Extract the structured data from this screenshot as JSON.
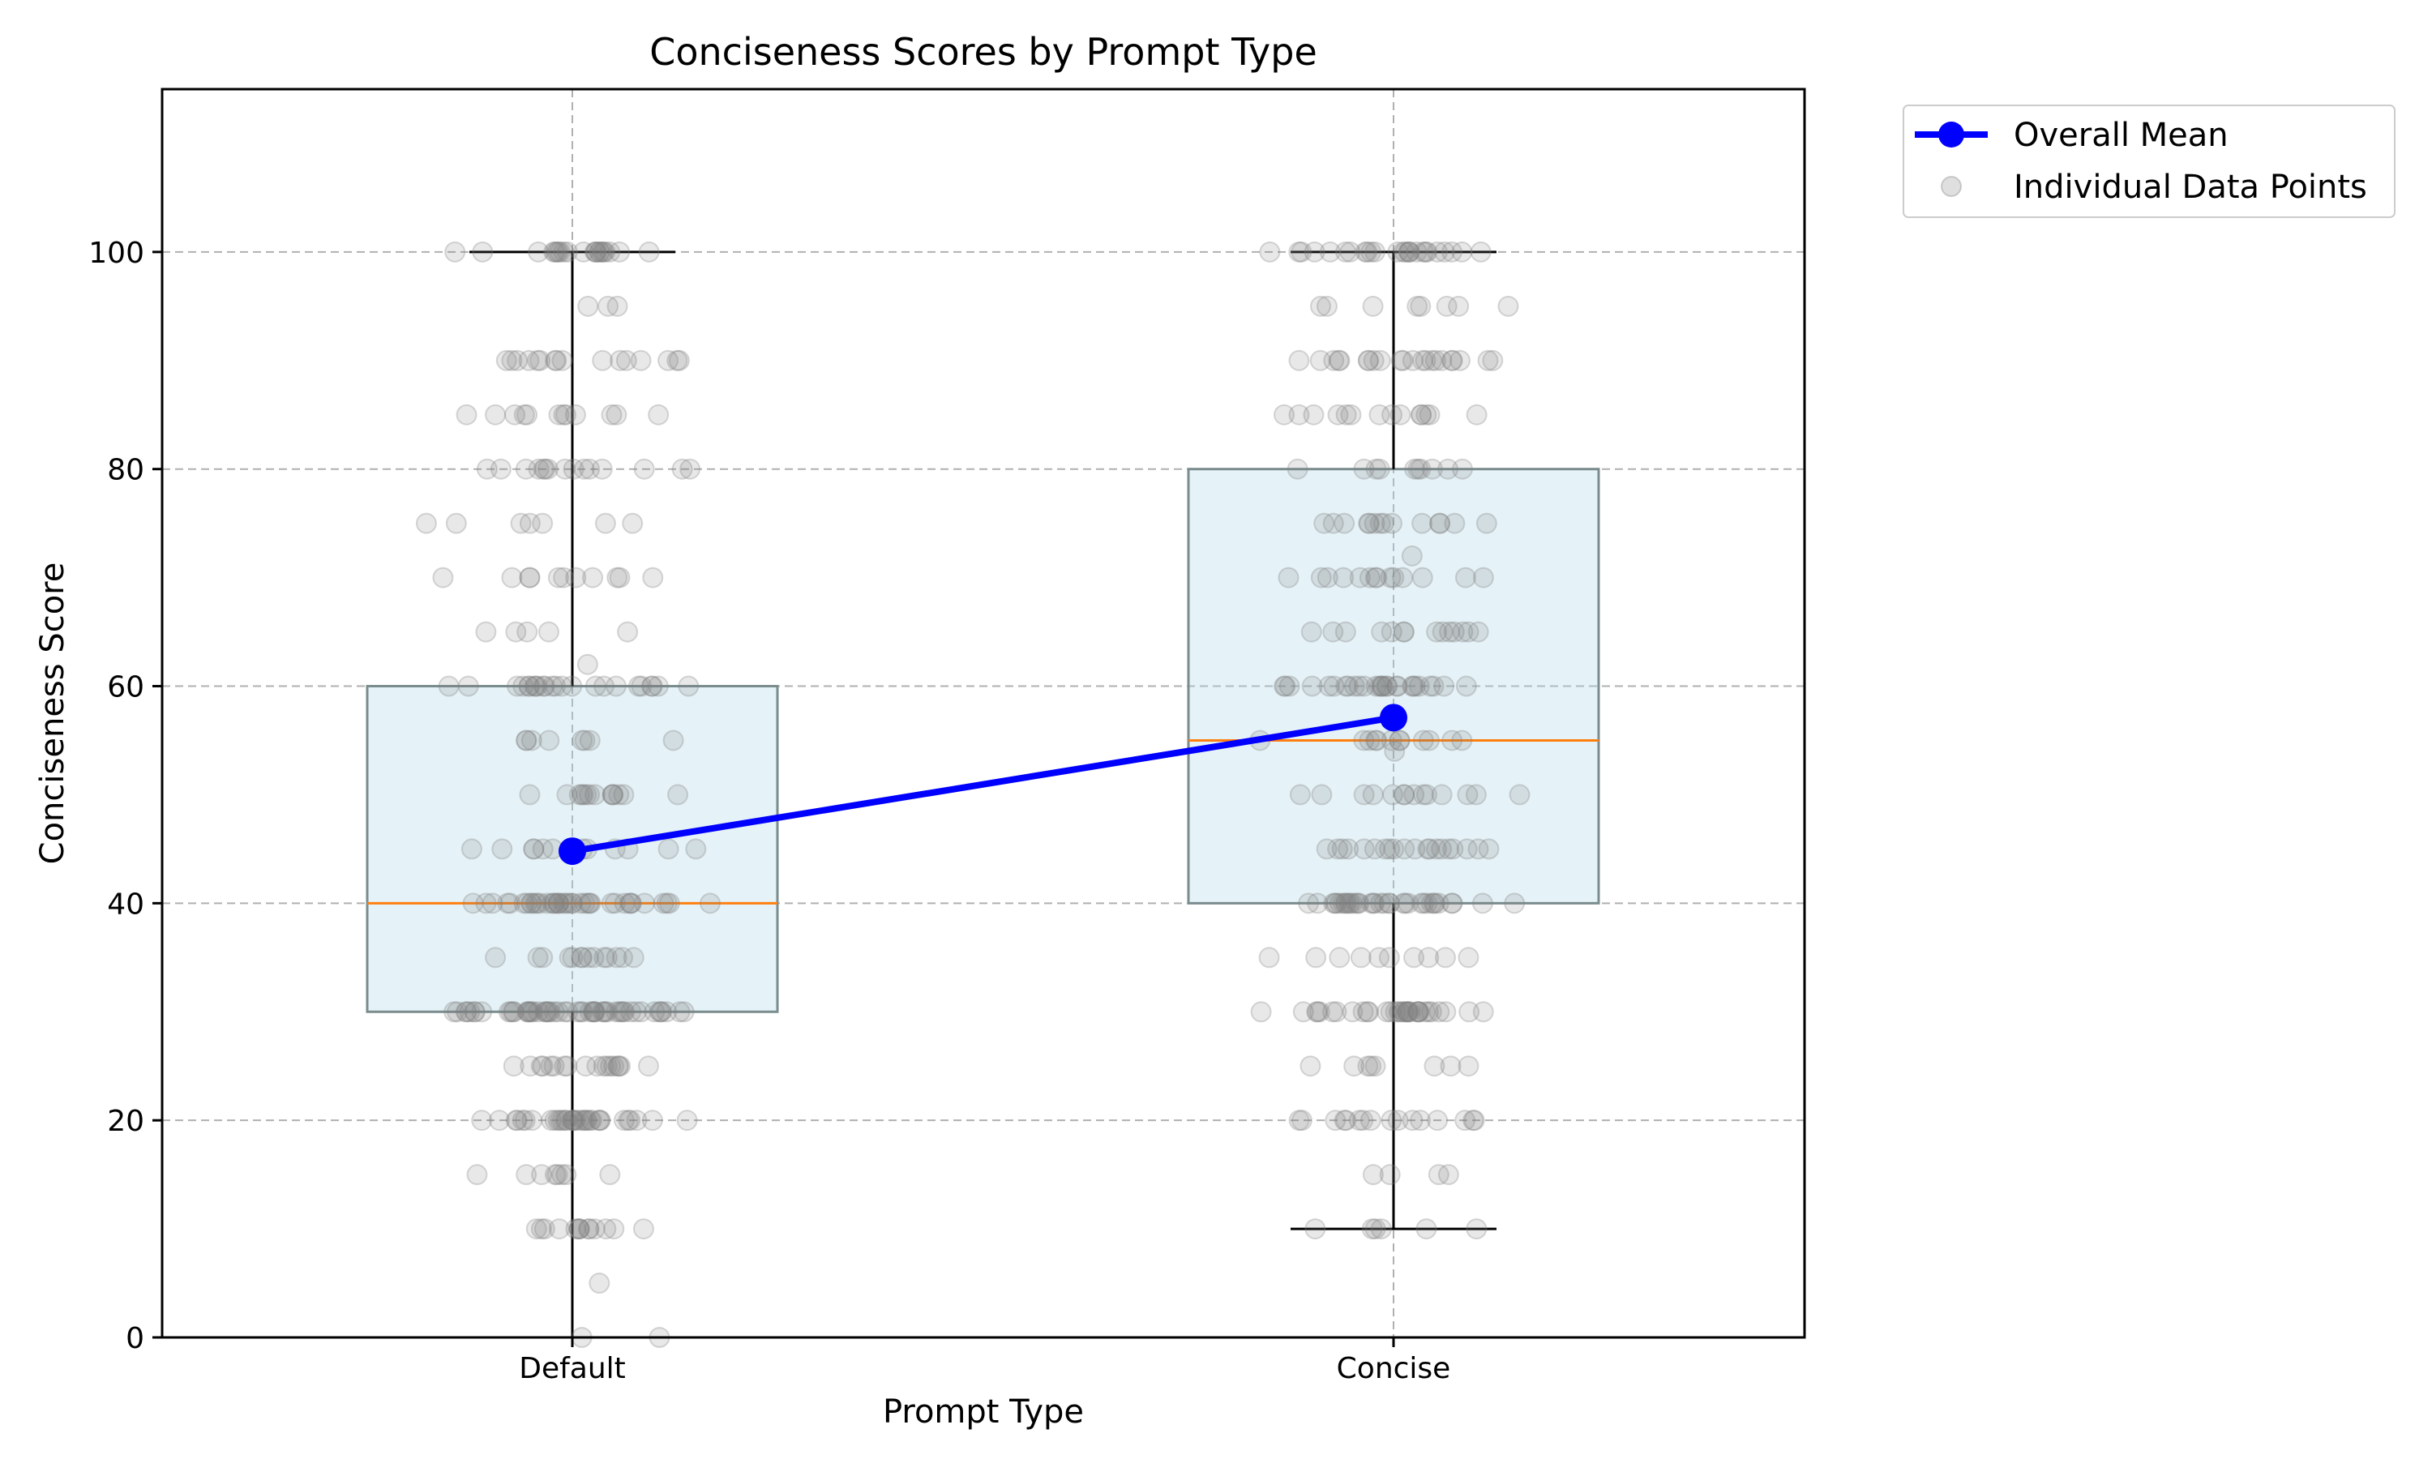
{
  "chart_data": {
    "type": "box",
    "title": "Conciseness Scores by Prompt Type",
    "xlabel": "Prompt Type",
    "ylabel": "Conciseness Score",
    "categories": [
      "Default",
      "Concise"
    ],
    "ylim": [
      0,
      115
    ],
    "yticks": [
      0,
      20,
      40,
      60,
      80,
      100
    ],
    "grid": true,
    "legend_position": "outside-top-right",
    "colors": {
      "box_fill": "#add8e6",
      "box_edge": "#7a8c8e",
      "median": "#ff7f0e",
      "mean_line": "#0000ff",
      "points": "#808080",
      "whisker": "#000000",
      "grid": "#b0b0b0"
    },
    "boxes": [
      {
        "category": "Default",
        "whisker_low": 0,
        "q1": 30,
        "median": 40,
        "q3": 60,
        "whisker_high": 100,
        "mean": 44.8
      },
      {
        "category": "Concise",
        "whisker_low": 10,
        "q1": 40,
        "median": 55,
        "q3": 80,
        "whisker_high": 100,
        "mean": 57.1
      }
    ],
    "series": [
      {
        "name": "Overall Mean",
        "type": "line",
        "categories": [
          "Default",
          "Concise"
        ],
        "values": [
          44.8,
          57.1
        ]
      },
      {
        "name": "Individual Data Points",
        "type": "scatter"
      }
    ],
    "points": [
      {
        "category": "Default",
        "groups": [
          {
            "y": 0,
            "n": 2
          },
          {
            "y": 5,
            "n": 1
          },
          {
            "y": 10,
            "n": 14
          },
          {
            "y": 15,
            "n": 8
          },
          {
            "y": 20,
            "n": 34
          },
          {
            "y": 25,
            "n": 18
          },
          {
            "y": 30,
            "n": 55
          },
          {
            "y": 35,
            "n": 14
          },
          {
            "y": 40,
            "n": 40
          },
          {
            "y": 45,
            "n": 12
          },
          {
            "y": 50,
            "n": 14
          },
          {
            "y": 55,
            "n": 8
          },
          {
            "y": 60,
            "n": 24
          },
          {
            "y": 62,
            "n": 1
          },
          {
            "y": 65,
            "n": 5
          },
          {
            "y": 70,
            "n": 11
          },
          {
            "y": 75,
            "n": 7
          },
          {
            "y": 80,
            "n": 15
          },
          {
            "y": 85,
            "n": 12
          },
          {
            "y": 90,
            "n": 16
          },
          {
            "y": 95,
            "n": 3
          },
          {
            "y": 100,
            "n": 22
          }
        ]
      },
      {
        "category": "Concise",
        "groups": [
          {
            "y": 10,
            "n": 6
          },
          {
            "y": 15,
            "n": 4
          },
          {
            "y": 20,
            "n": 16
          },
          {
            "y": 25,
            "n": 8
          },
          {
            "y": 30,
            "n": 34
          },
          {
            "y": 35,
            "n": 10
          },
          {
            "y": 40,
            "n": 36
          },
          {
            "y": 45,
            "n": 20
          },
          {
            "y": 50,
            "n": 14
          },
          {
            "y": 54,
            "n": 1
          },
          {
            "y": 55,
            "n": 12
          },
          {
            "y": 60,
            "n": 28
          },
          {
            "y": 65,
            "n": 14
          },
          {
            "y": 70,
            "n": 14
          },
          {
            "y": 72,
            "n": 1
          },
          {
            "y": 75,
            "n": 14
          },
          {
            "y": 80,
            "n": 10
          },
          {
            "y": 85,
            "n": 14
          },
          {
            "y": 90,
            "n": 22
          },
          {
            "y": 95,
            "n": 8
          },
          {
            "y": 100,
            "n": 26
          }
        ]
      }
    ]
  }
}
